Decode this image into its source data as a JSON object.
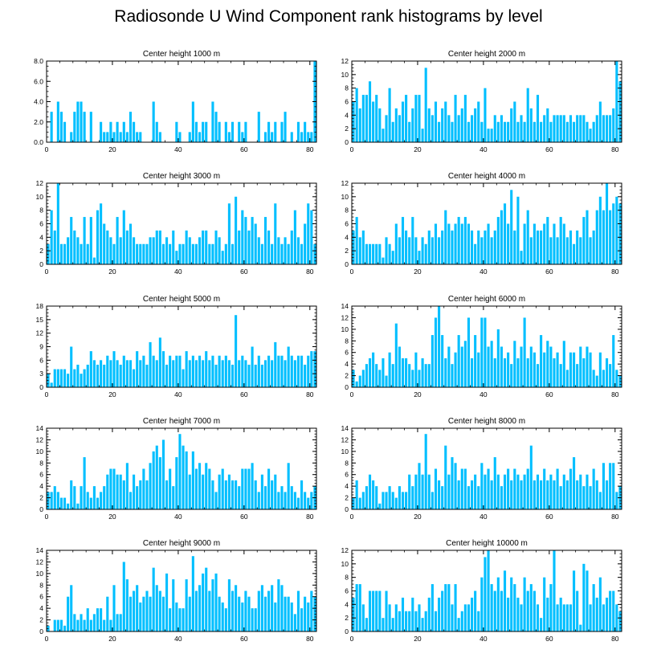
{
  "title": "Radiosonde U Wind Component rank histograms by level",
  "bar_color": "#00BFFF",
  "chart_data": [
    {
      "type": "bar",
      "title": "Center height 1000 m",
      "xlabel": "",
      "ylabel": "",
      "xlim": [
        0,
        82
      ],
      "ylim": [
        0,
        8
      ],
      "xticks": [
        0,
        20,
        40,
        60,
        80
      ],
      "yticks": [
        0,
        2,
        4,
        6,
        8
      ],
      "ytick_labels": [
        "0.0",
        "2.0",
        "4.0",
        "6.0",
        "8.0"
      ],
      "values": [
        0,
        3,
        0,
        4,
        3,
        2,
        0,
        1,
        3,
        4,
        4,
        3,
        0,
        3,
        0,
        0,
        2,
        1,
        1,
        2,
        1,
        2,
        1,
        2,
        1,
        3,
        2,
        1,
        1,
        0,
        0,
        0,
        4,
        2,
        1,
        0,
        0,
        0,
        0,
        2,
        1,
        0,
        0,
        1,
        4,
        2,
        1,
        2,
        2,
        0,
        4,
        3,
        2,
        0,
        2,
        1,
        2,
        0,
        2,
        1,
        2,
        0,
        0,
        0,
        3,
        0,
        1,
        2,
        1,
        2,
        0,
        2,
        3,
        0,
        1,
        0,
        2,
        1,
        2,
        1,
        1,
        8
      ]
    },
    {
      "type": "bar",
      "title": "Center height 2000 m",
      "xlabel": "",
      "ylabel": "",
      "xlim": [
        0,
        82
      ],
      "ylim": [
        0,
        12
      ],
      "xticks": [
        0,
        20,
        40,
        60,
        80
      ],
      "yticks": [
        0,
        2,
        4,
        6,
        8,
        10,
        12
      ],
      "ytick_labels": [
        "0",
        "2",
        "4",
        "6",
        "8",
        "10",
        "12"
      ],
      "values": [
        6,
        8,
        5,
        7,
        7,
        9,
        6,
        7,
        5,
        2,
        4,
        8,
        3,
        5,
        4,
        6,
        7,
        3,
        5,
        7,
        7,
        2,
        11,
        5,
        4,
        6,
        3,
        5,
        6,
        4,
        3,
        7,
        4,
        5,
        7,
        3,
        4,
        5,
        6,
        3,
        8,
        2,
        2,
        4,
        3,
        4,
        3,
        3,
        5,
        6,
        3,
        4,
        3,
        8,
        5,
        3,
        7,
        3,
        4,
        5,
        3,
        4,
        4,
        4,
        4,
        3,
        4,
        3,
        4,
        4,
        4,
        3,
        2,
        3,
        4,
        6,
        4,
        4,
        4,
        5,
        12,
        9
      ]
    },
    {
      "type": "bar",
      "title": "Center height 3000 m",
      "xlabel": "",
      "ylabel": "",
      "xlim": [
        0,
        82
      ],
      "ylim": [
        0,
        12
      ],
      "xticks": [
        0,
        20,
        40,
        60,
        80
      ],
      "yticks": [
        0,
        2,
        4,
        6,
        8,
        10,
        12
      ],
      "ytick_labels": [
        "0",
        "2",
        "4",
        "6",
        "8",
        "10",
        "12"
      ],
      "values": [
        3,
        8,
        5,
        12,
        3,
        3,
        4,
        7,
        5,
        4,
        3,
        7,
        3,
        7,
        1,
        8,
        9,
        6,
        5,
        4,
        3,
        7,
        4,
        8,
        5,
        6,
        4,
        3,
        3,
        3,
        3,
        4,
        4,
        5,
        5,
        3,
        4,
        3,
        5,
        2,
        3,
        3,
        5,
        4,
        3,
        3,
        4,
        5,
        5,
        3,
        3,
        5,
        4,
        2,
        3,
        9,
        3,
        10,
        5,
        8,
        7,
        5,
        7,
        6,
        4,
        3,
        7,
        5,
        3,
        9,
        4,
        3,
        4,
        3,
        5,
        8,
        4,
        3,
        6,
        9,
        8,
        3
      ]
    },
    {
      "type": "bar",
      "title": "Center height 4000 m",
      "xlabel": "",
      "ylabel": "",
      "xlim": [
        0,
        82
      ],
      "ylim": [
        0,
        12
      ],
      "xticks": [
        0,
        20,
        40,
        60,
        80
      ],
      "yticks": [
        0,
        2,
        4,
        6,
        8,
        10,
        12
      ],
      "ytick_labels": [
        "0",
        "2",
        "4",
        "6",
        "8",
        "10",
        "12"
      ],
      "values": [
        5,
        7,
        4,
        5,
        3,
        3,
        3,
        3,
        3,
        1,
        4,
        3,
        2,
        6,
        4,
        7,
        5,
        4,
        7,
        4,
        2,
        4,
        3,
        5,
        4,
        6,
        4,
        5,
        8,
        6,
        5,
        6,
        7,
        6,
        7,
        6,
        5,
        3,
        5,
        4,
        5,
        6,
        4,
        5,
        7,
        8,
        9,
        6,
        11,
        5,
        10,
        2,
        6,
        8,
        4,
        6,
        5,
        5,
        6,
        7,
        4,
        6,
        4,
        7,
        6,
        4,
        5,
        3,
        5,
        4,
        7,
        8,
        4,
        5,
        8,
        10,
        8,
        12,
        8,
        9,
        10,
        9
      ]
    },
    {
      "type": "bar",
      "title": "Center height 5000 m",
      "xlabel": "",
      "ylabel": "",
      "xlim": [
        0,
        82
      ],
      "ylim": [
        0,
        18
      ],
      "xticks": [
        0,
        20,
        40,
        60,
        80
      ],
      "yticks": [
        0,
        3,
        6,
        9,
        12,
        15,
        18
      ],
      "ytick_labels": [
        "0",
        "3",
        "6",
        "9",
        "12",
        "15",
        "18"
      ],
      "values": [
        3,
        1,
        4,
        4,
        4,
        4,
        3,
        9,
        4,
        5,
        3,
        4,
        5,
        8,
        6,
        5,
        6,
        5,
        7,
        6,
        8,
        6,
        5,
        7,
        6,
        6,
        4,
        8,
        6,
        7,
        5,
        10,
        7,
        6,
        11,
        8,
        5,
        7,
        6,
        7,
        7,
        4,
        8,
        6,
        7,
        6,
        7,
        6,
        8,
        6,
        7,
        5,
        7,
        6,
        7,
        6,
        5,
        16,
        6,
        7,
        6,
        5,
        9,
        5,
        7,
        5,
        6,
        7,
        6,
        10,
        7,
        7,
        6,
        9,
        7,
        6,
        7,
        7,
        5,
        7,
        8,
        8
      ]
    },
    {
      "type": "bar",
      "title": "Center height 6000 m",
      "xlabel": "",
      "ylabel": "",
      "xlim": [
        0,
        82
      ],
      "ylim": [
        0,
        14
      ],
      "xticks": [
        0,
        20,
        40,
        60,
        80
      ],
      "yticks": [
        0,
        2,
        4,
        6,
        8,
        10,
        12,
        14
      ],
      "ytick_labels": [
        "0",
        "2",
        "4",
        "6",
        "8",
        "10",
        "12",
        "14"
      ],
      "values": [
        3,
        1,
        2,
        3,
        4,
        5,
        6,
        4,
        3,
        5,
        2,
        6,
        4,
        11,
        7,
        5,
        5,
        4,
        3,
        6,
        3,
        5,
        4,
        4,
        9,
        12,
        14,
        9,
        5,
        7,
        4,
        6,
        9,
        7,
        8,
        12,
        5,
        9,
        6,
        12,
        12,
        7,
        8,
        5,
        10,
        7,
        5,
        6,
        4,
        8,
        5,
        7,
        12,
        5,
        7,
        6,
        4,
        9,
        6,
        8,
        7,
        5,
        6,
        4,
        8,
        3,
        6,
        6,
        4,
        7,
        5,
        7,
        6,
        3,
        2,
        6,
        3,
        5,
        4,
        9,
        3,
        2
      ]
    },
    {
      "type": "bar",
      "title": "Center height 7000 m",
      "xlabel": "",
      "ylabel": "",
      "xlim": [
        0,
        82
      ],
      "ylim": [
        0,
        14
      ],
      "xticks": [
        0,
        20,
        40,
        60,
        80
      ],
      "yticks": [
        0,
        2,
        4,
        6,
        8,
        10,
        12,
        14
      ],
      "ytick_labels": [
        "0",
        "2",
        "4",
        "6",
        "8",
        "10",
        "12",
        "14"
      ],
      "values": [
        3,
        3,
        4,
        3,
        2,
        2,
        1,
        5,
        4,
        1,
        4,
        9,
        3,
        2,
        4,
        2,
        3,
        4,
        6,
        7,
        7,
        6,
        6,
        5,
        8,
        3,
        6,
        4,
        5,
        7,
        5,
        8,
        10,
        11,
        9,
        12,
        5,
        7,
        4,
        9,
        13,
        11,
        10,
        6,
        10,
        7,
        8,
        6,
        8,
        7,
        5,
        3,
        6,
        7,
        5,
        6,
        5,
        5,
        4,
        7,
        7,
        7,
        8,
        5,
        3,
        6,
        4,
        7,
        5,
        6,
        3,
        4,
        3,
        8,
        4,
        3,
        2,
        5,
        3,
        2,
        3,
        4
      ]
    },
    {
      "type": "bar",
      "title": "Center height 8000 m",
      "xlabel": "",
      "ylabel": "",
      "xlim": [
        0,
        82
      ],
      "ylim": [
        0,
        14
      ],
      "xticks": [
        0,
        20,
        40,
        60,
        80
      ],
      "yticks": [
        0,
        2,
        4,
        6,
        8,
        10,
        12,
        14
      ],
      "ytick_labels": [
        "0",
        "2",
        "4",
        "6",
        "8",
        "10",
        "12",
        "14"
      ],
      "values": [
        2,
        5,
        2,
        3,
        4,
        6,
        5,
        4,
        1,
        3,
        3,
        4,
        3,
        2,
        4,
        3,
        3,
        6,
        4,
        6,
        8,
        6,
        13,
        6,
        3,
        7,
        5,
        4,
        11,
        6,
        9,
        8,
        5,
        7,
        7,
        4,
        5,
        6,
        4,
        8,
        6,
        7,
        5,
        9,
        6,
        4,
        6,
        7,
        5,
        7,
        6,
        5,
        6,
        7,
        11,
        5,
        6,
        5,
        7,
        5,
        6,
        5,
        7,
        4,
        6,
        5,
        7,
        9,
        5,
        6,
        4,
        6,
        4,
        7,
        5,
        3,
        8,
        5,
        8,
        8,
        3,
        4
      ]
    },
    {
      "type": "bar",
      "title": "Center height 9000 m",
      "xlabel": "",
      "ylabel": "",
      "xlim": [
        0,
        82
      ],
      "ylim": [
        0,
        14
      ],
      "xticks": [
        0,
        20,
        40,
        60,
        80
      ],
      "yticks": [
        0,
        2,
        4,
        6,
        8,
        10,
        12,
        14
      ],
      "ytick_labels": [
        "0",
        "2",
        "4",
        "6",
        "8",
        "10",
        "12",
        "14"
      ],
      "values": [
        1,
        0,
        2,
        2,
        2,
        1,
        6,
        8,
        3,
        2,
        3,
        2,
        4,
        2,
        3,
        4,
        4,
        2,
        6,
        2,
        8,
        3,
        3,
        12,
        9,
        6,
        7,
        8,
        5,
        6,
        7,
        6,
        11,
        8,
        7,
        6,
        10,
        4,
        9,
        5,
        4,
        4,
        9,
        6,
        13,
        7,
        8,
        10,
        11,
        7,
        9,
        10,
        6,
        5,
        4,
        9,
        7,
        8,
        6,
        5,
        7,
        6,
        4,
        4,
        7,
        8,
        6,
        7,
        8,
        5,
        9,
        8,
        6,
        6,
        5,
        3,
        7,
        4,
        6,
        5,
        7,
        6
      ]
    },
    {
      "type": "bar",
      "title": "Center height 10000 m",
      "xlabel": "",
      "ylabel": "",
      "xlim": [
        0,
        82
      ],
      "ylim": [
        0,
        12
      ],
      "xticks": [
        0,
        20,
        40,
        60,
        80
      ],
      "yticks": [
        0,
        2,
        4,
        6,
        8,
        10,
        12
      ],
      "ytick_labels": [
        "0",
        "2",
        "4",
        "6",
        "8",
        "10",
        "12"
      ],
      "values": [
        5,
        7,
        7,
        4,
        2,
        6,
        6,
        6,
        6,
        2,
        6,
        4,
        2,
        4,
        3,
        5,
        3,
        3,
        5,
        3,
        4,
        2,
        3,
        5,
        7,
        3,
        5,
        6,
        7,
        7,
        4,
        7,
        2,
        3,
        4,
        4,
        5,
        6,
        3,
        8,
        11,
        12,
        7,
        6,
        8,
        6,
        9,
        5,
        8,
        7,
        5,
        4,
        8,
        6,
        7,
        6,
        4,
        2,
        8,
        5,
        7,
        12,
        4,
        5,
        4,
        4,
        4,
        9,
        6,
        1,
        10,
        9,
        4,
        7,
        5,
        8,
        4,
        5,
        6,
        6,
        4,
        3
      ]
    }
  ]
}
